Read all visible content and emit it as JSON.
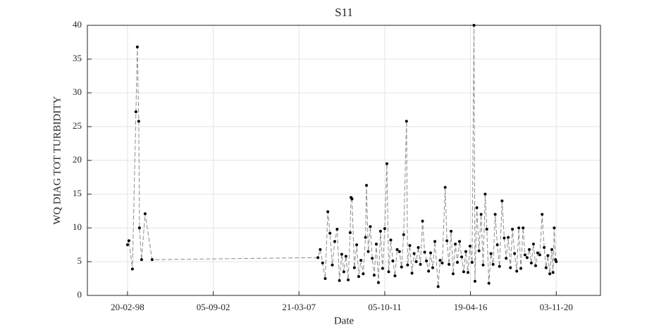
{
  "chart_data": {
    "type": "line",
    "title": "S11",
    "xlabel": "Date",
    "ylabel": "WQ DIAG TOT TURBIDITY",
    "xlim": [
      "06-01-96",
      "08-03-23"
    ],
    "xticks": [
      "20-02-98",
      "05-09-02",
      "21-03-07",
      "05-10-11",
      "19-04-16",
      "03-11-20"
    ],
    "ylim": [
      0,
      40
    ],
    "yticks": [
      0,
      5,
      10,
      15,
      20,
      25,
      30,
      35,
      40
    ],
    "grid": true,
    "line_color": "#8c8c8c",
    "line_style": "dashed",
    "marker_color": "#000000",
    "x": [
      "20-02-98",
      "19-03-98",
      "26-05-98",
      "02-08-98",
      "29-08-98",
      "25-09-98",
      "09-10-98",
      "19-11-98",
      "26-01-99",
      "11-06-99",
      "22-03-08",
      "05-05-08",
      "20-06-08",
      "10-08-08",
      "29-09-08",
      "10-11-08",
      "25-12-08",
      "10-02-09",
      "28-03-09",
      "12-05-09",
      "25-06-09",
      "05-08-09",
      "15-09-09",
      "28-10-09",
      "05-12-09",
      "22-12-09",
      "10-01-10",
      "25-02-10",
      "10-04-10",
      "20-05-10",
      "01-07-10",
      "15-08-10",
      "28-09-10",
      "17-10-10",
      "20-11-10",
      "30-12-10",
      "05-02-11",
      "15-03-11",
      "25-04-11",
      "05-06-11",
      "15-07-11",
      "25-08-11",
      "05-10-11",
      "15-11-11",
      "20-12-11",
      "30-01-12",
      "10-03-12",
      "20-04-12",
      "01-06-12",
      "15-07-12",
      "25-08-12",
      "05-10-12",
      "29-11-12",
      "20-12-12",
      "01-02-13",
      "15-03-13",
      "25-04-13",
      "05-06-13",
      "15-07-13",
      "25-08-13",
      "05-10-13",
      "15-11-13",
      "20-12-13",
      "30-01-14",
      "10-03-14",
      "20-04-14",
      "01-06-14",
      "03-08-14",
      "10-09-14",
      "20-10-14",
      "17-12-14",
      "20-01-15",
      "01-03-15",
      "10-04-15",
      "20-05-15",
      "01-07-15",
      "10-08-15",
      "20-09-15",
      "01-11-15",
      "10-12-15",
      "20-01-16",
      "01-03-16",
      "10-04-16",
      "20-05-16",
      "26-06-16",
      "15-07-16",
      "20-08-16",
      "01-10-16",
      "10-11-16",
      "20-12-16",
      "29-01-17",
      "01-03-17",
      "10-04-17",
      "20-05-17",
      "01-07-17",
      "10-08-17",
      "20-09-17",
      "01-11-17",
      "21-12-17",
      "01-02-18",
      "10-03-18",
      "20-04-18",
      "01-06-18",
      "10-07-18",
      "20-08-18",
      "01-10-18",
      "10-11-18",
      "20-12-18",
      "01-02-19",
      "10-03-19",
      "20-04-19",
      "01-06-19",
      "10-07-19",
      "20-08-19",
      "01-10-19",
      "10-11-19",
      "20-12-19",
      "04-02-20",
      "15-03-20",
      "20-04-20",
      "25-05-20",
      "01-07-20",
      "10-08-20",
      "01-09-20",
      "25-09-20",
      "20-10-20",
      "03-11-20"
    ],
    "values": [
      7.5,
      8.1,
      3.9,
      27.2,
      36.8,
      25.8,
      10.0,
      5.3,
      12.1,
      5.3,
      5.6,
      6.8,
      4.8,
      2.5,
      12.4,
      9.2,
      4.5,
      8.0,
      9.8,
      2.2,
      6.1,
      3.5,
      5.8,
      2.3,
      9.3,
      14.5,
      14.3,
      4.1,
      7.5,
      2.8,
      5.2,
      3.2,
      8.6,
      16.3,
      6.5,
      10.2,
      5.5,
      3.0,
      7.6,
      1.9,
      9.5,
      4.0,
      9.9,
      19.5,
      3.5,
      8.2,
      5.1,
      2.9,
      6.8,
      6.5,
      4.2,
      9.0,
      25.8,
      4.5,
      7.4,
      3.3,
      6.2,
      5.0,
      7.1,
      4.6,
      11.0,
      6.4,
      5.1,
      3.6,
      6.3,
      4.1,
      8.0,
      1.3,
      5.2,
      4.8,
      16.0,
      8.1,
      4.6,
      9.5,
      3.2,
      7.6,
      4.9,
      8.0,
      5.7,
      3.5,
      6.5,
      3.4,
      7.3,
      4.9,
      40,
      2.1,
      13.0,
      6.6,
      12.0,
      4.5,
      15.0,
      9.8,
      1.8,
      6.2,
      4.6,
      12.0,
      7.5,
      4.3,
      14.0,
      8.5,
      5.5,
      8.6,
      4.1,
      9.8,
      6.2,
      3.6,
      10.0,
      4.0,
      10.0,
      6.0,
      5.6,
      6.8,
      4.8,
      7.6,
      4.4,
      6.3,
      6.0,
      12.0,
      7.1,
      4.1,
      5.9,
      3.2,
      6.8,
      3.4,
      10.0,
      5.3,
      5.0
    ]
  }
}
